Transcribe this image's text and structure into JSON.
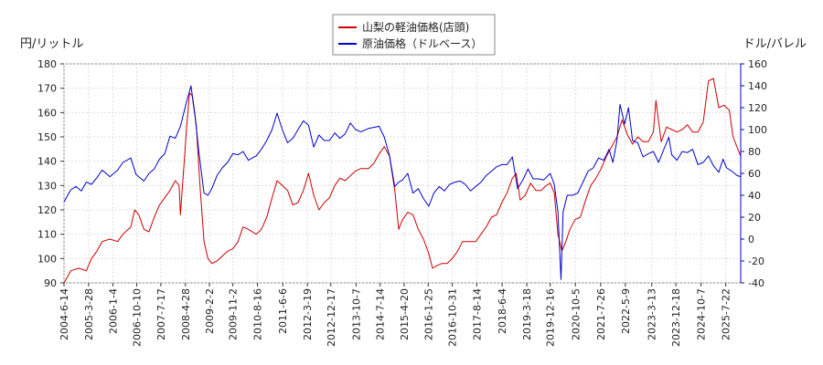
{
  "chart_data": {
    "type": "line",
    "left_unit": "円/リットル",
    "right_unit": "ドル/バレル",
    "legend_position": "top-center",
    "grid": true,
    "y_left": {
      "min": 90,
      "max": 180,
      "ticks": [
        90,
        100,
        110,
        120,
        130,
        140,
        150,
        160,
        170,
        180
      ]
    },
    "y_right": {
      "min": -40,
      "max": 160,
      "ticks": [
        -40,
        -20,
        0,
        20,
        40,
        60,
        80,
        100,
        120,
        140,
        160
      ]
    },
    "x_range": [
      "2004-06-14",
      "2026-01-12"
    ],
    "x_tick_labels": [
      "2004-6-14",
      "2005-3-28",
      "2006-1-4",
      "2006-10-10",
      "2007-7-17",
      "2008-4-28",
      "2009-2-2",
      "2009-11-2",
      "2010-8-16",
      "2011-6-6",
      "2012-3-19",
      "2012-12-17",
      "2013-10-7",
      "2014-7-14",
      "2015-4-20",
      "2016-1-25",
      "2016-10-31",
      "2017-8-14",
      "2018-6-4",
      "2019-3-18",
      "2019-12-16",
      "2020-10-5",
      "2021-7-26",
      "2022-5-9",
      "2023-3-13",
      "2023-12-18",
      "2024-10-7",
      "2025-7-22"
    ],
    "series": [
      {
        "name": "山梨の軽油価格(店頭)",
        "color": "#cc0000",
        "axis": "left",
        "points": [
          [
            "2004-06-14",
            90
          ],
          [
            "2004-09-01",
            95
          ],
          [
            "2004-12-01",
            96
          ],
          [
            "2005-03-01",
            95
          ],
          [
            "2005-05-01",
            100
          ],
          [
            "2005-07-01",
            103
          ],
          [
            "2005-09-01",
            107
          ],
          [
            "2005-12-01",
            108
          ],
          [
            "2006-03-01",
            107
          ],
          [
            "2006-05-01",
            110
          ],
          [
            "2006-08-01",
            113
          ],
          [
            "2006-09-15",
            120
          ],
          [
            "2006-11-01",
            118
          ],
          [
            "2007-01-01",
            112
          ],
          [
            "2007-03-01",
            111
          ],
          [
            "2007-05-01",
            117
          ],
          [
            "2007-07-01",
            122
          ],
          [
            "2007-09-01",
            125
          ],
          [
            "2007-11-01",
            128
          ],
          [
            "2008-01-01",
            132
          ],
          [
            "2008-02-15",
            130
          ],
          [
            "2008-03-01",
            118
          ],
          [
            "2008-04-15",
            140
          ],
          [
            "2008-05-15",
            155
          ],
          [
            "2008-06-15",
            168
          ],
          [
            "2008-07-15",
            167
          ],
          [
            "2008-09-01",
            155
          ],
          [
            "2008-10-15",
            130
          ],
          [
            "2008-12-01",
            107
          ],
          [
            "2009-01-15",
            100
          ],
          [
            "2009-03-01",
            98
          ],
          [
            "2009-05-01",
            99
          ],
          [
            "2009-07-01",
            101
          ],
          [
            "2009-09-01",
            103
          ],
          [
            "2009-11-01",
            104
          ],
          [
            "2010-01-01",
            107
          ],
          [
            "2010-03-01",
            113
          ],
          [
            "2010-05-01",
            112
          ],
          [
            "2010-08-01",
            110
          ],
          [
            "2010-10-01",
            112
          ],
          [
            "2010-12-01",
            117
          ],
          [
            "2011-02-01",
            125
          ],
          [
            "2011-04-01",
            132
          ],
          [
            "2011-06-01",
            130
          ],
          [
            "2011-08-01",
            128
          ],
          [
            "2011-10-01",
            122
          ],
          [
            "2011-12-01",
            123
          ],
          [
            "2012-02-01",
            128
          ],
          [
            "2012-04-01",
            135
          ],
          [
            "2012-06-01",
            126
          ],
          [
            "2012-08-01",
            120
          ],
          [
            "2012-10-01",
            123
          ],
          [
            "2012-12-01",
            125
          ],
          [
            "2013-02-01",
            130
          ],
          [
            "2013-04-01",
            133
          ],
          [
            "2013-06-01",
            132
          ],
          [
            "2013-08-01",
            134
          ],
          [
            "2013-10-01",
            136
          ],
          [
            "2013-12-01",
            137
          ],
          [
            "2014-03-01",
            137
          ],
          [
            "2014-05-01",
            139
          ],
          [
            "2014-07-01",
            143
          ],
          [
            "2014-09-01",
            146
          ],
          [
            "2014-11-01",
            142
          ],
          [
            "2015-01-01",
            128
          ],
          [
            "2015-02-15",
            112
          ],
          [
            "2015-04-01",
            116
          ],
          [
            "2015-06-01",
            119
          ],
          [
            "2015-08-01",
            118
          ],
          [
            "2015-10-01",
            112
          ],
          [
            "2015-12-01",
            108
          ],
          [
            "2016-02-01",
            102
          ],
          [
            "2016-03-15",
            96
          ],
          [
            "2016-05-01",
            97
          ],
          [
            "2016-07-01",
            98
          ],
          [
            "2016-09-01",
            98
          ],
          [
            "2016-11-01",
            100
          ],
          [
            "2017-01-01",
            103
          ],
          [
            "2017-03-01",
            107
          ],
          [
            "2017-05-01",
            107
          ],
          [
            "2017-08-01",
            107
          ],
          [
            "2017-10-01",
            110
          ],
          [
            "2017-12-01",
            113
          ],
          [
            "2018-02-01",
            117
          ],
          [
            "2018-04-01",
            118
          ],
          [
            "2018-06-01",
            123
          ],
          [
            "2018-08-01",
            127
          ],
          [
            "2018-10-01",
            133
          ],
          [
            "2018-11-15",
            135
          ],
          [
            "2019-01-01",
            124
          ],
          [
            "2019-03-01",
            126
          ],
          [
            "2019-05-01",
            131
          ],
          [
            "2019-07-01",
            128
          ],
          [
            "2019-09-01",
            128
          ],
          [
            "2019-11-01",
            130
          ],
          [
            "2019-12-16",
            131
          ],
          [
            "2020-02-01",
            127
          ],
          [
            "2020-03-15",
            110
          ],
          [
            "2020-05-01",
            103
          ],
          [
            "2020-06-15",
            107
          ],
          [
            "2020-08-01",
            112
          ],
          [
            "2020-10-01",
            116
          ],
          [
            "2020-12-01",
            117
          ],
          [
            "2021-02-01",
            124
          ],
          [
            "2021-04-01",
            130
          ],
          [
            "2021-06-01",
            133
          ],
          [
            "2021-08-01",
            137
          ],
          [
            "2021-10-01",
            142
          ],
          [
            "2021-12-01",
            146
          ],
          [
            "2022-02-01",
            150
          ],
          [
            "2022-04-01",
            157
          ],
          [
            "2022-06-01",
            151
          ],
          [
            "2022-08-01",
            147
          ],
          [
            "2022-10-01",
            150
          ],
          [
            "2022-12-01",
            148
          ],
          [
            "2023-02-01",
            148
          ],
          [
            "2023-04-01",
            152
          ],
          [
            "2023-05-01",
            165
          ],
          [
            "2023-07-01",
            148
          ],
          [
            "2023-09-01",
            154
          ],
          [
            "2023-11-01",
            153
          ],
          [
            "2024-01-01",
            152
          ],
          [
            "2024-03-01",
            153
          ],
          [
            "2024-05-01",
            155
          ],
          [
            "2024-07-01",
            152
          ],
          [
            "2024-09-01",
            152
          ],
          [
            "2024-11-01",
            156
          ],
          [
            "2025-01-01",
            173
          ],
          [
            "2025-03-01",
            174
          ],
          [
            "2025-05-01",
            162
          ],
          [
            "2025-07-01",
            163
          ],
          [
            "2025-09-01",
            161
          ],
          [
            "2025-10-15",
            150
          ],
          [
            "2026-01-12",
            142
          ]
        ]
      },
      {
        "name": "原油価格（ドルベース）",
        "color": "#0000cc",
        "axis": "right",
        "points": [
          [
            "2004-06-14",
            34
          ],
          [
            "2004-09-01",
            45
          ],
          [
            "2004-11-01",
            48
          ],
          [
            "2005-01-01",
            44
          ],
          [
            "2005-03-01",
            52
          ],
          [
            "2005-05-01",
            50
          ],
          [
            "2005-07-01",
            56
          ],
          [
            "2005-09-01",
            63
          ],
          [
            "2005-12-01",
            57
          ],
          [
            "2006-03-01",
            63
          ],
          [
            "2006-05-01",
            70
          ],
          [
            "2006-08-01",
            74
          ],
          [
            "2006-10-01",
            59
          ],
          [
            "2007-01-01",
            53
          ],
          [
            "2007-03-01",
            60
          ],
          [
            "2007-05-01",
            64
          ],
          [
            "2007-07-01",
            73
          ],
          [
            "2007-09-01",
            78
          ],
          [
            "2007-11-01",
            94
          ],
          [
            "2008-01-01",
            92
          ],
          [
            "2008-03-01",
            103
          ],
          [
            "2008-05-01",
            122
          ],
          [
            "2008-07-01",
            140
          ],
          [
            "2008-08-15",
            115
          ],
          [
            "2008-10-01",
            80
          ],
          [
            "2008-12-01",
            42
          ],
          [
            "2009-01-15",
            40
          ],
          [
            "2009-03-01",
            46
          ],
          [
            "2009-05-01",
            58
          ],
          [
            "2009-07-01",
            65
          ],
          [
            "2009-09-01",
            70
          ],
          [
            "2009-11-01",
            78
          ],
          [
            "2010-01-01",
            77
          ],
          [
            "2010-03-01",
            80
          ],
          [
            "2010-05-01",
            72
          ],
          [
            "2010-08-01",
            76
          ],
          [
            "2010-10-01",
            82
          ],
          [
            "2010-12-01",
            90
          ],
          [
            "2011-02-01",
            100
          ],
          [
            "2011-04-01",
            115
          ],
          [
            "2011-06-01",
            100
          ],
          [
            "2011-08-01",
            88
          ],
          [
            "2011-10-01",
            92
          ],
          [
            "2011-12-01",
            100
          ],
          [
            "2012-02-01",
            108
          ],
          [
            "2012-04-01",
            104
          ],
          [
            "2012-06-01",
            84
          ],
          [
            "2012-08-01",
            95
          ],
          [
            "2012-10-01",
            90
          ],
          [
            "2012-12-01",
            90
          ],
          [
            "2013-02-01",
            97
          ],
          [
            "2013-04-01",
            92
          ],
          [
            "2013-06-01",
            96
          ],
          [
            "2013-08-01",
            106
          ],
          [
            "2013-10-01",
            100
          ],
          [
            "2013-12-01",
            98
          ],
          [
            "2014-03-01",
            101
          ],
          [
            "2014-05-01",
            102
          ],
          [
            "2014-07-01",
            103
          ],
          [
            "2014-09-01",
            93
          ],
          [
            "2014-11-01",
            76
          ],
          [
            "2015-01-01",
            48
          ],
          [
            "2015-02-15",
            52
          ],
          [
            "2015-04-01",
            54
          ],
          [
            "2015-06-01",
            60
          ],
          [
            "2015-08-01",
            42
          ],
          [
            "2015-10-01",
            46
          ],
          [
            "2015-12-01",
            37
          ],
          [
            "2016-02-01",
            30
          ],
          [
            "2016-04-01",
            42
          ],
          [
            "2016-06-01",
            48
          ],
          [
            "2016-08-01",
            44
          ],
          [
            "2016-10-01",
            50
          ],
          [
            "2016-12-01",
            52
          ],
          [
            "2017-02-01",
            53
          ],
          [
            "2017-04-01",
            50
          ],
          [
            "2017-06-01",
            44
          ],
          [
            "2017-08-01",
            48
          ],
          [
            "2017-10-01",
            52
          ],
          [
            "2017-12-01",
            58
          ],
          [
            "2018-02-01",
            62
          ],
          [
            "2018-04-01",
            66
          ],
          [
            "2018-06-01",
            68
          ],
          [
            "2018-08-01",
            68
          ],
          [
            "2018-10-01",
            75
          ],
          [
            "2018-12-01",
            46
          ],
          [
            "2019-02-01",
            54
          ],
          [
            "2019-04-01",
            64
          ],
          [
            "2019-06-01",
            55
          ],
          [
            "2019-08-01",
            55
          ],
          [
            "2019-10-01",
            54
          ],
          [
            "2019-12-16",
            60
          ],
          [
            "2020-02-01",
            50
          ],
          [
            "2020-03-15",
            25
          ],
          [
            "2020-04-20",
            -37
          ],
          [
            "2020-05-15",
            25
          ],
          [
            "2020-07-01",
            40
          ],
          [
            "2020-09-01",
            40
          ],
          [
            "2020-11-01",
            42
          ],
          [
            "2021-01-01",
            52
          ],
          [
            "2021-03-01",
            62
          ],
          [
            "2021-05-01",
            65
          ],
          [
            "2021-07-01",
            74
          ],
          [
            "2021-09-01",
            72
          ],
          [
            "2021-11-01",
            82
          ],
          [
            "2021-12-15",
            70
          ],
          [
            "2022-02-01",
            90
          ],
          [
            "2022-03-08",
            123
          ],
          [
            "2022-05-01",
            105
          ],
          [
            "2022-06-15",
            120
          ],
          [
            "2022-08-01",
            90
          ],
          [
            "2022-10-01",
            88
          ],
          [
            "2022-12-01",
            75
          ],
          [
            "2023-02-01",
            78
          ],
          [
            "2023-04-01",
            80
          ],
          [
            "2023-06-01",
            70
          ],
          [
            "2023-08-01",
            82
          ],
          [
            "2023-09-28",
            93
          ],
          [
            "2023-11-01",
            77
          ],
          [
            "2024-01-01",
            72
          ],
          [
            "2024-03-01",
            80
          ],
          [
            "2024-05-01",
            79
          ],
          [
            "2024-07-01",
            82
          ],
          [
            "2024-09-01",
            68
          ],
          [
            "2024-11-01",
            70
          ],
          [
            "2025-01-01",
            76
          ],
          [
            "2025-03-01",
            67
          ],
          [
            "2025-05-01",
            61
          ],
          [
            "2025-06-20",
            73
          ],
          [
            "2025-08-01",
            65
          ],
          [
            "2025-10-01",
            62
          ],
          [
            "2025-12-01",
            58
          ],
          [
            "2026-01-12",
            57
          ]
        ]
      }
    ]
  }
}
